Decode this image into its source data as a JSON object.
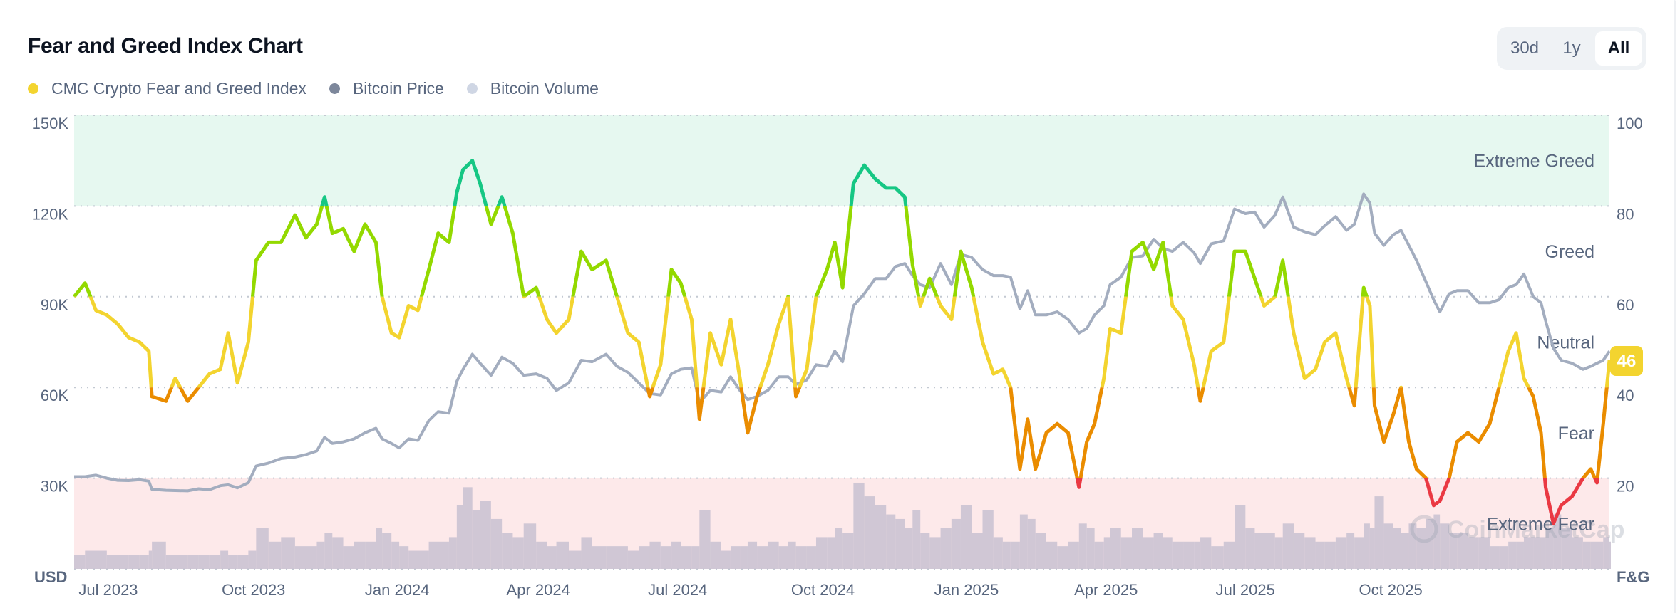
{
  "header": {
    "title": "Fear and Greed Index Chart",
    "range_buttons": [
      {
        "label": "30d",
        "active": false
      },
      {
        "label": "1y",
        "active": false
      },
      {
        "label": "All",
        "active": true
      }
    ]
  },
  "legend": [
    {
      "label": "CMC Crypto Fear and Greed Index",
      "color": "#f3d42f"
    },
    {
      "label": "Bitcoin Price",
      "color": "#7d879b"
    },
    {
      "label": "Bitcoin Volume",
      "color": "#cfd6e4"
    }
  ],
  "watermark": "CoinMarketCap",
  "current_badge": {
    "value": "46",
    "color": "#f3d42f"
  },
  "chart_data": {
    "type": "line",
    "x_range": [
      "2023-06-29",
      "2026-03-12"
    ],
    "x_ticks": [
      {
        "label": "Jul 2023",
        "date": "2023-07-01"
      },
      {
        "label": "Oct 2023",
        "date": "2023-10-01"
      },
      {
        "label": "Jan 2024",
        "date": "2024-01-01"
      },
      {
        "label": "Apr 2024",
        "date": "2024-04-01"
      },
      {
        "label": "Jul 2024",
        "date": "2024-07-01"
      },
      {
        "label": "Oct 2024",
        "date": "2024-10-01"
      },
      {
        "label": "Jan 2025",
        "date": "2025-01-01"
      },
      {
        "label": "Apr 2025",
        "date": "2025-04-01"
      },
      {
        "label": "Jul 2025",
        "date": "2025-07-01"
      },
      {
        "label": "Oct 2025",
        "date": "2025-10-01"
      }
    ],
    "left_axis": {
      "unit_label": "USD",
      "range": [
        0,
        150000
      ],
      "ticks": [
        {
          "value": 150000,
          "label": "150K"
        },
        {
          "value": 120000,
          "label": "120K"
        },
        {
          "value": 90000,
          "label": "90K"
        },
        {
          "value": 60000,
          "label": "60K"
        },
        {
          "value": 30000,
          "label": "30K"
        }
      ]
    },
    "right_axis": {
      "unit_label": "F&G",
      "range": [
        0,
        100
      ],
      "ticks": [
        {
          "value": 100,
          "label": "100"
        },
        {
          "value": 80,
          "label": "80"
        },
        {
          "value": 60,
          "label": "60"
        },
        {
          "value": 40,
          "label": "40"
        },
        {
          "value": 20,
          "label": "20"
        }
      ]
    },
    "grid": true,
    "bands": [
      {
        "label": "Extreme Greed",
        "from": 80,
        "to": 100,
        "line_color": "#16c784",
        "fill": "#e6f8f0"
      },
      {
        "label": "Greed",
        "from": 60,
        "to": 80,
        "line_color": "#93d900",
        "fill": null
      },
      {
        "label": "Neutral",
        "from": 40,
        "to": 60,
        "line_color": "#f3d42f",
        "fill": null
      },
      {
        "label": "Fear",
        "from": 20,
        "to": 40,
        "line_color": "#ea8c00",
        "fill": null
      },
      {
        "label": "Extreme Fear",
        "from": 0,
        "to": 20,
        "line_color": "#ea3943",
        "fill": "#fde9ea"
      }
    ],
    "price_color": "#a3adbf",
    "volume_color": "#cbc3d3",
    "series_columns": [
      "date",
      "fear_greed",
      "btc_price_usd",
      "volume_level_pct_of_axis"
    ],
    "series": [
      [
        "2023-06-29",
        60,
        30500,
        3
      ],
      [
        "2023-07-06",
        63,
        30500,
        4
      ],
      [
        "2023-07-13",
        57,
        31000,
        4
      ],
      [
        "2023-07-20",
        56,
        30000,
        3
      ],
      [
        "2023-07-27",
        54,
        29300,
        3
      ],
      [
        "2023-08-03",
        51,
        29200,
        3
      ],
      [
        "2023-08-10",
        50,
        29500,
        3
      ],
      [
        "2023-08-16",
        48,
        29000,
        4
      ],
      [
        "2023-08-18",
        38,
        26300,
        6
      ],
      [
        "2023-08-27",
        37,
        26000,
        3
      ],
      [
        "2023-09-02",
        42,
        25900,
        3
      ],
      [
        "2023-09-10",
        37,
        25800,
        3
      ],
      [
        "2023-09-17",
        40,
        26500,
        3
      ],
      [
        "2023-09-24",
        43,
        26200,
        3
      ],
      [
        "2023-10-01",
        44,
        27500,
        4
      ],
      [
        "2023-10-06",
        52,
        27800,
        3
      ],
      [
        "2023-10-12",
        41,
        26800,
        3
      ],
      [
        "2023-10-19",
        50,
        28500,
        4
      ],
      [
        "2023-10-24",
        68,
        34000,
        9
      ],
      [
        "2023-11-01",
        72,
        35000,
        6
      ],
      [
        "2023-11-09",
        72,
        36500,
        7
      ],
      [
        "2023-11-18",
        78,
        37000,
        5
      ],
      [
        "2023-11-25",
        73,
        37800,
        5
      ],
      [
        "2023-12-02",
        76,
        39000,
        6
      ],
      [
        "2023-12-07",
        82,
        43500,
        8
      ],
      [
        "2023-12-12",
        74,
        41500,
        7
      ],
      [
        "2023-12-19",
        75,
        42000,
        5
      ],
      [
        "2023-12-26",
        70,
        43000,
        6
      ],
      [
        "2024-01-02",
        76,
        45000,
        6
      ],
      [
        "2024-01-09",
        72,
        46500,
        9
      ],
      [
        "2024-01-13",
        60,
        43000,
        8
      ],
      [
        "2024-01-19",
        52,
        41500,
        6
      ],
      [
        "2024-01-24",
        51,
        40000,
        5
      ],
      [
        "2024-01-30",
        58,
        43000,
        4
      ],
      [
        "2024-02-05",
        57,
        42500,
        4
      ],
      [
        "2024-02-12",
        66,
        49000,
        6
      ],
      [
        "2024-02-18",
        74,
        52000,
        6
      ],
      [
        "2024-02-25",
        72,
        51500,
        7
      ],
      [
        "2024-03-01",
        83,
        62000,
        14
      ],
      [
        "2024-03-05",
        88,
        66000,
        18
      ],
      [
        "2024-03-11",
        90,
        71000,
        13
      ],
      [
        "2024-03-16",
        85,
        68000,
        15
      ],
      [
        "2024-03-23",
        76,
        64000,
        11
      ],
      [
        "2024-03-30",
        82,
        70000,
        8
      ],
      [
        "2024-04-06",
        74,
        68000,
        7
      ],
      [
        "2024-04-13",
        60,
        64000,
        10
      ],
      [
        "2024-04-21",
        62,
        64500,
        6
      ],
      [
        "2024-04-28",
        55,
        63000,
        5
      ],
      [
        "2024-05-04",
        52,
        59000,
        6
      ],
      [
        "2024-05-12",
        55,
        61500,
        4
      ],
      [
        "2024-05-20",
        70,
        69000,
        7
      ],
      [
        "2024-05-27",
        66,
        68500,
        5
      ],
      [
        "2024-06-05",
        68,
        71000,
        5
      ],
      [
        "2024-06-12",
        60,
        67000,
        5
      ],
      [
        "2024-06-19",
        52,
        65000,
        4
      ],
      [
        "2024-06-26",
        50,
        61500,
        5
      ],
      [
        "2024-07-03",
        38,
        58000,
        6
      ],
      [
        "2024-07-10",
        45,
        57500,
        5
      ],
      [
        "2024-07-17",
        66,
        64500,
        6
      ],
      [
        "2024-07-23",
        63,
        66000,
        5
      ],
      [
        "2024-07-30",
        55,
        66500,
        5
      ],
      [
        "2024-08-04",
        33,
        55000,
        13
      ],
      [
        "2024-08-11",
        52,
        59000,
        6
      ],
      [
        "2024-08-18",
        45,
        58500,
        4
      ],
      [
        "2024-08-24",
        55,
        63500,
        5
      ],
      [
        "2024-08-30",
        42,
        59000,
        5
      ],
      [
        "2024-09-04",
        30,
        56000,
        6
      ],
      [
        "2024-09-10",
        38,
        57000,
        5
      ],
      [
        "2024-09-17",
        45,
        59000,
        6
      ],
      [
        "2024-09-24",
        54,
        63500,
        5
      ],
      [
        "2024-09-30",
        60,
        63500,
        6
      ],
      [
        "2024-10-05",
        38,
        61000,
        5
      ],
      [
        "2024-10-12",
        44,
        62500,
        5
      ],
      [
        "2024-10-18",
        60,
        67500,
        7
      ],
      [
        "2024-10-25",
        66,
        67000,
        7
      ],
      [
        "2024-10-30",
        72,
        72000,
        9
      ],
      [
        "2024-11-04",
        62,
        68500,
        8
      ],
      [
        "2024-11-11",
        85,
        87000,
        19
      ],
      [
        "2024-11-18",
        89,
        91000,
        16
      ],
      [
        "2024-11-25",
        86,
        96000,
        14
      ],
      [
        "2024-12-02",
        84,
        96000,
        12
      ],
      [
        "2024-12-08",
        84,
        100000,
        11
      ],
      [
        "2024-12-14",
        82,
        101000,
        9
      ],
      [
        "2024-12-19",
        67,
        97000,
        13
      ],
      [
        "2024-12-24",
        58,
        94000,
        8
      ],
      [
        "2024-12-30",
        64,
        93000,
        7
      ],
      [
        "2025-01-06",
        58,
        101000,
        9
      ],
      [
        "2025-01-13",
        55,
        94000,
        11
      ],
      [
        "2025-01-19",
        70,
        104000,
        14
      ],
      [
        "2025-01-26",
        62,
        103000,
        8
      ],
      [
        "2025-02-02",
        50,
        99000,
        13
      ],
      [
        "2025-02-09",
        43,
        97000,
        7
      ],
      [
        "2025-02-15",
        44,
        97000,
        6
      ],
      [
        "2025-02-20",
        40,
        96500,
        6
      ],
      [
        "2025-02-26",
        22,
        86000,
        12
      ],
      [
        "2025-03-03",
        33,
        92000,
        11
      ],
      [
        "2025-03-08",
        22,
        84000,
        8
      ],
      [
        "2025-03-15",
        30,
        84000,
        6
      ],
      [
        "2025-03-22",
        32,
        85000,
        5
      ],
      [
        "2025-03-29",
        30,
        82500,
        6
      ],
      [
        "2025-04-05",
        18,
        78000,
        10
      ],
      [
        "2025-04-10",
        28,
        79500,
        9
      ],
      [
        "2025-04-15",
        32,
        84000,
        6
      ],
      [
        "2025-04-21",
        42,
        87000,
        7
      ],
      [
        "2025-04-25",
        53,
        94000,
        9
      ],
      [
        "2025-05-02",
        52,
        96500,
        7
      ],
      [
        "2025-05-09",
        70,
        103000,
        9
      ],
      [
        "2025-05-16",
        72,
        103500,
        7
      ],
      [
        "2025-05-23",
        66,
        109000,
        8
      ],
      [
        "2025-05-29",
        72,
        106000,
        7
      ],
      [
        "2025-06-04",
        58,
        105000,
        6
      ],
      [
        "2025-06-11",
        55,
        108000,
        6
      ],
      [
        "2025-06-18",
        45,
        104500,
        6
      ],
      [
        "2025-06-22",
        37,
        101000,
        7
      ],
      [
        "2025-06-29",
        48,
        107500,
        5
      ],
      [
        "2025-07-07",
        50,
        108500,
        6
      ],
      [
        "2025-07-14",
        70,
        119000,
        14
      ],
      [
        "2025-07-21",
        70,
        117500,
        9
      ],
      [
        "2025-07-27",
        64,
        118000,
        8
      ],
      [
        "2025-08-02",
        58,
        113000,
        8
      ],
      [
        "2025-08-09",
        60,
        117000,
        7
      ],
      [
        "2025-08-14",
        68,
        123000,
        10
      ],
      [
        "2025-08-21",
        52,
        113000,
        8
      ],
      [
        "2025-08-28",
        42,
        111500,
        7
      ],
      [
        "2025-09-04",
        44,
        110500,
        6
      ],
      [
        "2025-09-10",
        50,
        113500,
        6
      ],
      [
        "2025-09-17",
        52,
        116500,
        7
      ],
      [
        "2025-09-24",
        42,
        112000,
        8
      ],
      [
        "2025-09-29",
        36,
        114000,
        7
      ],
      [
        "2025-10-05",
        62,
        124000,
        10
      ],
      [
        "2025-10-09",
        58,
        121000,
        9
      ],
      [
        "2025-10-12",
        36,
        111000,
        16
      ],
      [
        "2025-10-18",
        28,
        107000,
        10
      ],
      [
        "2025-10-24",
        34,
        110500,
        9
      ],
      [
        "2025-10-29",
        40,
        112000,
        8
      ],
      [
        "2025-11-03",
        28,
        107000,
        10
      ],
      [
        "2025-11-08",
        22,
        102000,
        9
      ],
      [
        "2025-11-14",
        20,
        95000,
        11
      ],
      [
        "2025-11-19",
        14,
        89000,
        12
      ],
      [
        "2025-11-23",
        15,
        85000,
        10
      ],
      [
        "2025-11-29",
        20,
        91000,
        8
      ],
      [
        "2025-12-04",
        28,
        92000,
        8
      ],
      [
        "2025-12-11",
        30,
        92000,
        7
      ],
      [
        "2025-12-18",
        28,
        88000,
        7
      ],
      [
        "2025-12-25",
        32,
        88000,
        5
      ],
      [
        "2025-12-31",
        40,
        89000,
        5
      ],
      [
        "2026-01-06",
        48,
        93000,
        6
      ],
      [
        "2026-01-11",
        52,
        94000,
        6
      ],
      [
        "2026-01-16",
        42,
        97500,
        7
      ],
      [
        "2026-01-22",
        38,
        90000,
        7
      ],
      [
        "2026-01-27",
        30,
        88000,
        7
      ],
      [
        "2026-01-30",
        18,
        82000,
        9
      ],
      [
        "2026-02-04",
        10,
        73000,
        12
      ],
      [
        "2026-02-09",
        14,
        69000,
        9
      ],
      [
        "2026-02-16",
        16,
        68000,
        7
      ],
      [
        "2026-02-23",
        20,
        66000,
        6
      ],
      [
        "2026-02-28",
        22,
        67000,
        6
      ],
      [
        "2026-03-04",
        19,
        68000,
        6
      ],
      [
        "2026-03-08",
        32,
        69000,
        7
      ],
      [
        "2026-03-12",
        46,
        72000,
        6
      ]
    ]
  }
}
